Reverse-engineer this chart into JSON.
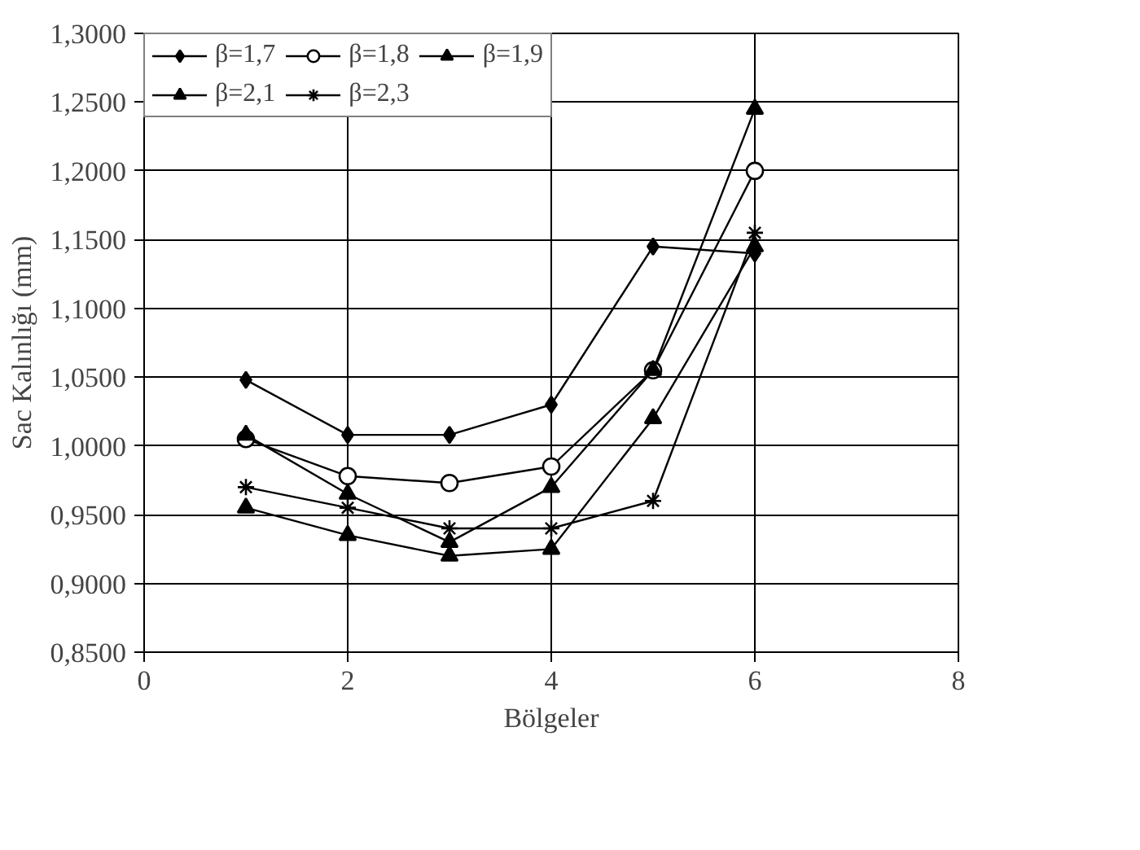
{
  "chart_data": {
    "type": "line",
    "xlabel": "Bölgeler",
    "ylabel": "Sac Kalınlığı (mm)",
    "x": [
      1,
      2,
      3,
      4,
      5,
      6
    ],
    "series": [
      {
        "name": "β=1,7",
        "color": "#000000",
        "marker": "diamond",
        "values": [
          1.048,
          1.008,
          1.008,
          1.03,
          1.145,
          1.14
        ]
      },
      {
        "name": "β=1,8",
        "color": "#000000",
        "marker": "circle",
        "values": [
          1.005,
          0.978,
          0.973,
          0.985,
          1.055,
          1.2
        ]
      },
      {
        "name": "β=1,9",
        "color": "#000000",
        "marker": "triangle",
        "values": [
          1.008,
          0.965,
          0.93,
          0.97,
          1.055,
          1.245
        ]
      },
      {
        "name": "β=2,1",
        "color": "#000000",
        "marker": "triangle",
        "values": [
          0.955,
          0.935,
          0.92,
          0.925,
          1.02,
          1.145
        ]
      },
      {
        "name": "β=2,3",
        "color": "#000000",
        "marker": "cross",
        "values": [
          0.97,
          0.955,
          0.94,
          0.94,
          0.96,
          1.155
        ]
      }
    ],
    "xlim": [
      0,
      8
    ],
    "xticks": [
      0,
      2,
      4,
      6,
      8
    ],
    "ylim": [
      0.85,
      1.3
    ],
    "yticks": [
      {
        "value": 0.85,
        "label": "0,8500"
      },
      {
        "value": 0.9,
        "label": "0,9000"
      },
      {
        "value": 0.95,
        "label": "0,9500"
      },
      {
        "value": 1.0,
        "label": "1,0000"
      },
      {
        "value": 1.05,
        "label": "1,0500"
      },
      {
        "value": 1.1,
        "label": "1,1000"
      },
      {
        "value": 1.15,
        "label": "1,1500"
      },
      {
        "value": 1.2,
        "label": "1,2000"
      },
      {
        "value": 1.25,
        "label": "1,2500"
      },
      {
        "value": 1.3,
        "label": "1,3000"
      }
    ],
    "grid": true,
    "legend": "top left",
    "line_style": "solid"
  }
}
